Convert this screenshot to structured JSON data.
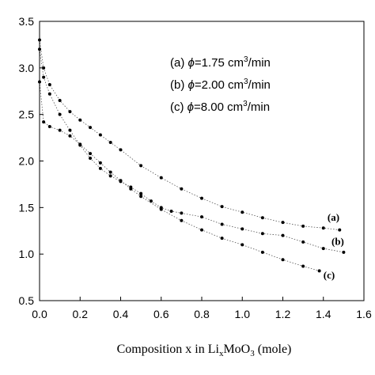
{
  "chart_data": {
    "type": "scatter",
    "xlim": [
      0.0,
      1.6
    ],
    "ylim": [
      0.5,
      3.5
    ],
    "x_ticks": [
      "0.0",
      "0.2",
      "0.4",
      "0.6",
      "0.8",
      "1.0",
      "1.2",
      "1.4",
      "1.6"
    ],
    "y_ticks": [
      "0.5",
      "1.0",
      "1.5",
      "2.0",
      "2.5",
      "3.0",
      "3.5"
    ],
    "xlabel": {
      "prefix": "Composition x in Li",
      "sub1": "x",
      "mid": "MoO",
      "sub2": "3",
      "suffix": "  (mole)"
    },
    "legend": {
      "position": "top-right",
      "entries": [
        {
          "prefix": "(a) ",
          "symbol": "ϕ",
          "value": "=1.75 cm",
          "sup": "3",
          "unit": "/min"
        },
        {
          "prefix": "(b) ",
          "symbol": "ϕ",
          "value": "=2.00 cm",
          "sup": "3",
          "unit": "/min"
        },
        {
          "prefix": "(c) ",
          "symbol": "ϕ",
          "value": "=8.00 cm",
          "sup": "3",
          "unit": "/min"
        }
      ]
    },
    "series": [
      {
        "name": "(a)",
        "label_pos": [
          1.42,
          1.36
        ],
        "x": [
          0.0,
          0.02,
          0.05,
          0.1,
          0.15,
          0.2,
          0.25,
          0.3,
          0.35,
          0.4,
          0.5,
          0.6,
          0.7,
          0.8,
          0.9,
          1.0,
          1.1,
          1.2,
          1.3,
          1.4,
          1.48
        ],
        "y": [
          3.3,
          3.0,
          2.82,
          2.65,
          2.53,
          2.44,
          2.36,
          2.28,
          2.2,
          2.12,
          1.95,
          1.82,
          1.7,
          1.6,
          1.51,
          1.45,
          1.39,
          1.34,
          1.3,
          1.28,
          1.26
        ]
      },
      {
        "name": "(b)",
        "label_pos": [
          1.44,
          1.1
        ],
        "x": [
          0.0,
          0.02,
          0.05,
          0.1,
          0.15,
          0.2,
          0.25,
          0.3,
          0.35,
          0.4,
          0.45,
          0.5,
          0.55,
          0.6,
          0.65,
          0.7,
          0.8,
          0.9,
          1.0,
          1.1,
          1.2,
          1.3,
          1.4,
          1.5
        ],
        "y": [
          3.2,
          2.9,
          2.72,
          2.5,
          2.33,
          2.17,
          2.03,
          1.92,
          1.84,
          1.78,
          1.72,
          1.65,
          1.57,
          1.5,
          1.46,
          1.44,
          1.4,
          1.32,
          1.27,
          1.22,
          1.2,
          1.13,
          1.06,
          1.02
        ]
      },
      {
        "name": "(c)",
        "label_pos": [
          1.4,
          0.74
        ],
        "x": [
          0.0,
          0.02,
          0.05,
          0.1,
          0.15,
          0.2,
          0.25,
          0.3,
          0.35,
          0.4,
          0.45,
          0.5,
          0.6,
          0.7,
          0.8,
          0.9,
          1.0,
          1.1,
          1.2,
          1.3,
          1.38
        ],
        "y": [
          2.85,
          2.42,
          2.37,
          2.33,
          2.27,
          2.18,
          2.08,
          1.98,
          1.88,
          1.79,
          1.7,
          1.62,
          1.48,
          1.36,
          1.26,
          1.17,
          1.1,
          1.02,
          0.94,
          0.87,
          0.82
        ]
      }
    ]
  }
}
